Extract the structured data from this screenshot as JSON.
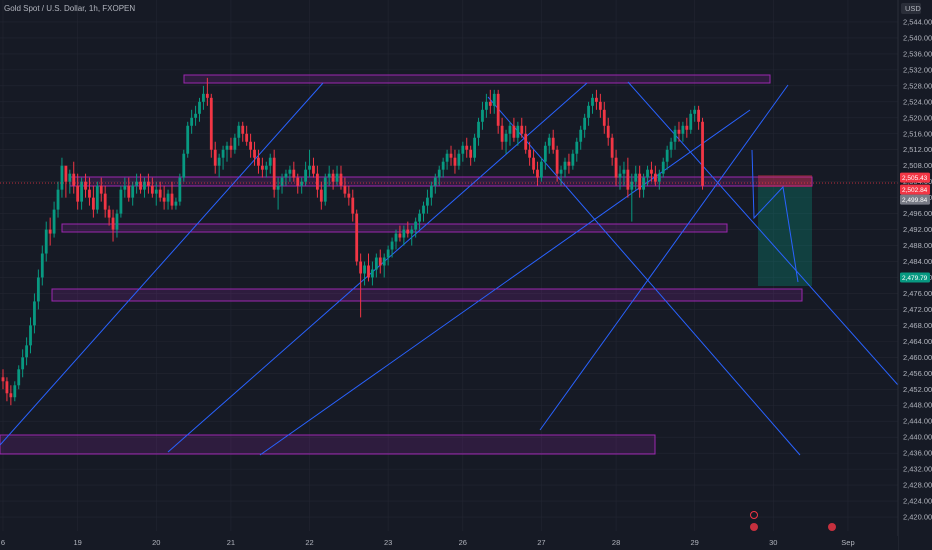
{
  "symbol": "Gold Spot / U.S. Dollar, 1h, FXOPEN",
  "currency": "USD",
  "chart_data": {
    "type": "candlestick",
    "ylim": [
      2416.5,
      2547.5
    ],
    "y_ticks": [
      "2,544.00",
      "2,540.00",
      "2,536.00",
      "2,532.00",
      "2,528.00",
      "2,524.00",
      "2,520.00",
      "2,516.00",
      "2,512.00",
      "2,508.00",
      "2,504.00",
      "2,500.00",
      "2,496.00",
      "2,492.00",
      "2,488.00",
      "2,484.00",
      "2,480.00",
      "2,476.00",
      "2,472.00",
      "2,468.00",
      "2,464.00",
      "2,460.00",
      "2,456.00",
      "2,452.00",
      "2,448.00",
      "2,444.00",
      "2,440.00",
      "2,436.00",
      "2,432.00",
      "2,428.00",
      "2,424.00",
      "2,420.00"
    ],
    "y_tick_values": [
      2544,
      2540,
      2536,
      2532,
      2528,
      2524,
      2520,
      2516,
      2512,
      2508,
      2504,
      2500,
      2496,
      2492,
      2488,
      2484,
      2480,
      2476,
      2472,
      2468,
      2464,
      2460,
      2456,
      2452,
      2448,
      2444,
      2440,
      2436,
      2432,
      2428,
      2424,
      2420
    ],
    "x_ticks": [
      {
        "label": "6",
        "slot": 0
      },
      {
        "label": "19",
        "slot": 19
      },
      {
        "label": "20",
        "slot": 39
      },
      {
        "label": "21",
        "slot": 58
      },
      {
        "label": "22",
        "slot": 78
      },
      {
        "label": "23",
        "slot": 98
      },
      {
        "label": "26",
        "slot": 117
      },
      {
        "label": "27",
        "slot": 137
      },
      {
        "label": "28",
        "slot": 156
      },
      {
        "label": "29",
        "slot": 176
      },
      {
        "label": "30",
        "slot": 196
      },
      {
        "label": "Sep",
        "slot": 215
      }
    ],
    "price_tags": [
      {
        "value": 2505,
        "label": "2,505.43",
        "color": "#f23645"
      },
      {
        "value": 2502,
        "label": "2,502.84",
        "color": "#f23645"
      },
      {
        "value": 2499.5,
        "label": "2,499.84",
        "color": "#787b86"
      },
      {
        "value": 2480,
        "label": "2,479.79",
        "color": "#089981"
      }
    ],
    "candles": [
      [
        2455,
        2457,
        2452,
        2454
      ],
      [
        2454,
        2455,
        2449,
        2451
      ],
      [
        2451,
        2453,
        2448,
        2450
      ],
      [
        2450,
        2454,
        2449,
        2453
      ],
      [
        2453,
        2458,
        2452,
        2457
      ],
      [
        2457,
        2462,
        2455,
        2460
      ],
      [
        2460,
        2465,
        2458,
        2463
      ],
      [
        2463,
        2470,
        2461,
        2468
      ],
      [
        2468,
        2476,
        2466,
        2474
      ],
      [
        2474,
        2482,
        2472,
        2480
      ],
      [
        2480,
        2488,
        2478,
        2486
      ],
      [
        2486,
        2494,
        2484,
        2492
      ],
      [
        2492,
        2495,
        2488,
        2491
      ],
      [
        2491,
        2499,
        2490,
        2497
      ],
      [
        2497,
        2504,
        2495,
        2502
      ],
      [
        2502,
        2510,
        2500,
        2508
      ],
      [
        2508,
        2507,
        2500,
        2504
      ],
      [
        2504,
        2507,
        2501,
        2506
      ],
      [
        2506,
        2509,
        2501,
        2503
      ],
      [
        2503,
        2506,
        2497,
        2499
      ],
      [
        2499,
        2505,
        2497,
        2504
      ],
      [
        2504,
        2506,
        2500,
        2502
      ],
      [
        2502,
        2505,
        2498,
        2500
      ],
      [
        2500,
        2503,
        2495,
        2497
      ],
      [
        2497,
        2504,
        2496,
        2503
      ],
      [
        2503,
        2505,
        2499,
        2501
      ],
      [
        2501,
        2503,
        2495,
        2497
      ],
      [
        2497,
        2498,
        2493,
        2495
      ],
      [
        2495,
        2497,
        2489,
        2492
      ],
      [
        2492,
        2497,
        2490,
        2496
      ],
      [
        2496,
        2503,
        2495,
        2502
      ],
      [
        2502,
        2505,
        2500,
        2503
      ],
      [
        2503,
        2505,
        2499,
        2500
      ],
      [
        2500,
        2504,
        2498,
        2503
      ],
      [
        2503,
        2506,
        2501,
        2504
      ],
      [
        2504,
        2506,
        2501,
        2502
      ],
      [
        2502,
        2505,
        2500,
        2504
      ],
      [
        2504,
        2506,
        2501,
        2503
      ],
      [
        2503,
        2505,
        2500,
        2501
      ],
      [
        2501,
        2504,
        2498,
        2502
      ],
      [
        2502,
        2504,
        2499,
        2500
      ],
      [
        2500,
        2503,
        2497,
        2499
      ],
      [
        2499,
        2502,
        2497,
        2501
      ],
      [
        2501,
        2504,
        2497,
        2498
      ],
      [
        2498,
        2500,
        2497,
        2499
      ],
      [
        2499,
        2506,
        2498,
        2505
      ],
      [
        2505,
        2512,
        2504,
        2511
      ],
      [
        2511,
        2519,
        2510,
        2518
      ],
      [
        2518,
        2522,
        2516,
        2520
      ],
      [
        2520,
        2523,
        2518,
        2521
      ],
      [
        2521,
        2525,
        2519,
        2524
      ],
      [
        2524,
        2528,
        2522,
        2526
      ],
      [
        2526,
        2530,
        2523,
        2525
      ],
      [
        2525,
        2526,
        2510,
        2512
      ],
      [
        2512,
        2514,
        2506,
        2508
      ],
      [
        2508,
        2511,
        2505,
        2510
      ],
      [
        2510,
        2513,
        2507,
        2512
      ],
      [
        2512,
        2514,
        2509,
        2513
      ],
      [
        2513,
        2515,
        2510,
        2512
      ],
      [
        2512,
        2516,
        2511,
        2515
      ],
      [
        2515,
        2519,
        2513,
        2518
      ],
      [
        2518,
        2519,
        2514,
        2516
      ],
      [
        2516,
        2518,
        2513,
        2514
      ],
      [
        2514,
        2516,
        2510,
        2512
      ],
      [
        2512,
        2514,
        2508,
        2510
      ],
      [
        2510,
        2512,
        2506,
        2508
      ],
      [
        2508,
        2510,
        2505,
        2507
      ],
      [
        2507,
        2509,
        2505,
        2508
      ],
      [
        2508,
        2511,
        2506,
        2510
      ],
      [
        2510,
        2512,
        2500,
        2502
      ],
      [
        2502,
        2505,
        2497,
        2503
      ],
      [
        2503,
        2506,
        2501,
        2505
      ],
      [
        2505,
        2507,
        2503,
        2506
      ],
      [
        2506,
        2508,
        2504,
        2507
      ],
      [
        2507,
        2509,
        2504,
        2505
      ],
      [
        2505,
        2506,
        2501,
        2503
      ],
      [
        2503,
        2505,
        2501,
        2504
      ],
      [
        2504,
        2509,
        2503,
        2507
      ],
      [
        2507,
        2512,
        2505,
        2508
      ],
      [
        2508,
        2510,
        2505,
        2506
      ],
      [
        2506,
        2508,
        2500,
        2502
      ],
      [
        2502,
        2504,
        2497,
        2499
      ],
      [
        2499,
        2506,
        2498,
        2505
      ],
      [
        2505,
        2508,
        2503,
        2506
      ],
      [
        2506,
        2507,
        2502,
        2504
      ],
      [
        2504,
        2508,
        2503,
        2506
      ],
      [
        2506,
        2508,
        2502,
        2503
      ],
      [
        2503,
        2505,
        2500,
        2501
      ],
      [
        2501,
        2503,
        2498,
        2500
      ],
      [
        2500,
        2502,
        2494,
        2496
      ],
      [
        2496,
        2497,
        2483,
        2484
      ],
      [
        2484,
        2486,
        2470,
        2481
      ],
      [
        2481,
        2484,
        2478,
        2483
      ],
      [
        2483,
        2486,
        2479,
        2480
      ],
      [
        2480,
        2484,
        2478,
        2482
      ],
      [
        2482,
        2486,
        2480,
        2485
      ],
      [
        2485,
        2487,
        2481,
        2483
      ],
      [
        2483,
        2486,
        2480,
        2485
      ],
      [
        2485,
        2488,
        2483,
        2487
      ],
      [
        2487,
        2490,
        2485,
        2489
      ],
      [
        2489,
        2492,
        2487,
        2491
      ],
      [
        2491,
        2493,
        2489,
        2490
      ],
      [
        2490,
        2493,
        2488,
        2492
      ],
      [
        2492,
        2494,
        2490,
        2491
      ],
      [
        2491,
        2493,
        2488,
        2492
      ],
      [
        2492,
        2495,
        2490,
        2494
      ],
      [
        2494,
        2497,
        2492,
        2496
      ],
      [
        2496,
        2499,
        2494,
        2498
      ],
      [
        2498,
        2502,
        2496,
        2500
      ],
      [
        2500,
        2504,
        2498,
        2503
      ],
      [
        2503,
        2506,
        2501,
        2505
      ],
      [
        2505,
        2508,
        2503,
        2507
      ],
      [
        2507,
        2510,
        2505,
        2509
      ],
      [
        2509,
        2512,
        2507,
        2511
      ],
      [
        2511,
        2513,
        2508,
        2510
      ],
      [
        2510,
        2512,
        2506,
        2508
      ],
      [
        2508,
        2512,
        2507,
        2511
      ],
      [
        2511,
        2514,
        2509,
        2513
      ],
      [
        2513,
        2515,
        2510,
        2512
      ],
      [
        2512,
        2513,
        2508,
        2510
      ],
      [
        2510,
        2516,
        2509,
        2515
      ],
      [
        2515,
        2520,
        2513,
        2519
      ],
      [
        2519,
        2524,
        2517,
        2522
      ],
      [
        2522,
        2526,
        2520,
        2524
      ],
      [
        2524,
        2527,
        2521,
        2523
      ],
      [
        2523,
        2527,
        2521,
        2526
      ],
      [
        2526,
        2527,
        2516,
        2518
      ],
      [
        2518,
        2520,
        2512,
        2514
      ],
      [
        2514,
        2517,
        2511,
        2516
      ],
      [
        2516,
        2519,
        2513,
        2518
      ],
      [
        2518,
        2520,
        2514,
        2515
      ],
      [
        2515,
        2519,
        2513,
        2518
      ],
      [
        2518,
        2520,
        2515,
        2516
      ],
      [
        2516,
        2518,
        2511,
        2512
      ],
      [
        2512,
        2514,
        2508,
        2510
      ],
      [
        2510,
        2512,
        2506,
        2507
      ],
      [
        2507,
        2509,
        2503,
        2505
      ],
      [
        2505,
        2510,
        2504,
        2509
      ],
      [
        2509,
        2514,
        2507,
        2513
      ],
      [
        2513,
        2516,
        2511,
        2515
      ],
      [
        2515,
        2517,
        2511,
        2512
      ],
      [
        2512,
        2513,
        2504,
        2506
      ],
      [
        2506,
        2508,
        2503,
        2507
      ],
      [
        2507,
        2510,
        2505,
        2509
      ],
      [
        2509,
        2511,
        2506,
        2508
      ],
      [
        2508,
        2512,
        2507,
        2511
      ],
      [
        2511,
        2515,
        2509,
        2514
      ],
      [
        2514,
        2518,
        2512,
        2517
      ],
      [
        2517,
        2521,
        2515,
        2520
      ],
      [
        2520,
        2524,
        2518,
        2523
      ],
      [
        2523,
        2526,
        2521,
        2525
      ],
      [
        2525,
        2527,
        2522,
        2524
      ],
      [
        2524,
        2526,
        2520,
        2522
      ],
      [
        2522,
        2524,
        2516,
        2518
      ],
      [
        2518,
        2520,
        2513,
        2515
      ],
      [
        2515,
        2516,
        2508,
        2510
      ],
      [
        2510,
        2512,
        2503,
        2505
      ],
      [
        2505,
        2508,
        2502,
        2506
      ],
      [
        2506,
        2509,
        2503,
        2507
      ],
      [
        2507,
        2510,
        2500,
        2502
      ],
      [
        2502,
        2506,
        2494,
        2504
      ],
      [
        2504,
        2508,
        2502,
        2506
      ],
      [
        2506,
        2508,
        2500,
        2502
      ],
      [
        2502,
        2506,
        2500,
        2505
      ],
      [
        2505,
        2508,
        2503,
        2507
      ],
      [
        2507,
        2509,
        2504,
        2506
      ],
      [
        2506,
        2508,
        2503,
        2504
      ],
      [
        2504,
        2507,
        2502,
        2506
      ],
      [
        2506,
        2510,
        2505,
        2509
      ],
      [
        2509,
        2513,
        2507,
        2512
      ],
      [
        2512,
        2515,
        2510,
        2514
      ],
      [
        2514,
        2518,
        2512,
        2517
      ],
      [
        2517,
        2519,
        2514,
        2516
      ],
      [
        2516,
        2519,
        2514,
        2518
      ],
      [
        2518,
        2520,
        2515,
        2517
      ],
      [
        2517,
        2522,
        2516,
        2521
      ],
      [
        2521,
        2523,
        2519,
        2522
      ],
      [
        2522,
        2523,
        2517,
        2519
      ],
      [
        2519,
        2520,
        2502,
        2503
      ]
    ]
  },
  "colors": {
    "background": "#161a25",
    "grid": "#232632",
    "up": "#089981",
    "down": "#f23645",
    "line": "#2962ff",
    "box_stroke": "#9c27b0",
    "box_fill": "#9c27b0"
  }
}
